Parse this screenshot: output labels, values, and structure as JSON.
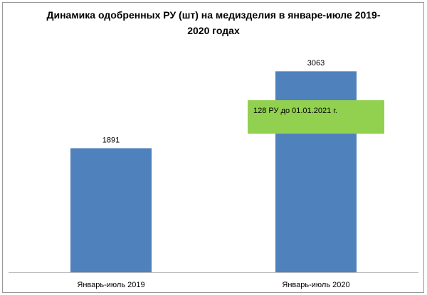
{
  "chart_data": {
    "type": "bar",
    "title": "Динамика одобренных РУ (шт) на медизделия в январе-июле 2019-2020 годах",
    "categories": [
      "Январь-июль 2019",
      "Январь-июль 2020"
    ],
    "values": [
      1891,
      3063
    ],
    "color": "#4f81bd",
    "ylim": [
      0,
      3500
    ],
    "annotation": {
      "text": "128 РУ до 01.01.2021 г.",
      "color": "#92d050"
    }
  }
}
